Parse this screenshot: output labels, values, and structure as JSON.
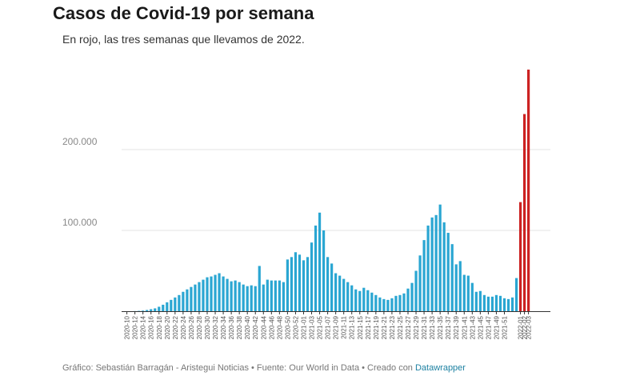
{
  "chart_data": {
    "type": "bar",
    "title": "Casos de Covid-19 por semana",
    "subtitle": "En rojo, las tres semanas que llevamos de 2022.",
    "ylim": [
      0,
      300000
    ],
    "yticks": [
      100000,
      200000
    ],
    "ytick_labels": [
      "100.000",
      "200.000"
    ],
    "grid": true,
    "colors": {
      "default": "#2aa6d2",
      "highlight": "#cc2222"
    },
    "highlight_last": 3,
    "values": [
      0,
      50,
      150,
      400,
      700,
      1500,
      2500,
      3500,
      5500,
      8000,
      11000,
      14000,
      17000,
      20000,
      24000,
      27000,
      30000,
      33000,
      36000,
      39000,
      42000,
      43000,
      45000,
      47000,
      43000,
      40000,
      37000,
      38000,
      36000,
      33000,
      31000,
      32000,
      31000,
      56000,
      33000,
      39000,
      38000,
      38000,
      38000,
      36000,
      64000,
      67000,
      73000,
      70000,
      63000,
      67000,
      85000,
      106000,
      122000,
      100000,
      67000,
      59000,
      47000,
      44000,
      40000,
      36000,
      32000,
      27000,
      25000,
      29000,
      26000,
      23000,
      20000,
      17000,
      15000,
      14000,
      16000,
      19000,
      20000,
      22000,
      28000,
      35000,
      50000,
      69000,
      88000,
      106000,
      116000,
      119000,
      132000,
      110000,
      97000,
      83000,
      58000,
      62000,
      45000,
      44000,
      35000,
      24000,
      25000,
      20000,
      18000,
      18000,
      20000,
      19000,
      16000,
      15000,
      17000,
      41000,
      135000,
      244000,
      299000
    ],
    "xtick_labels": [
      "2020-10",
      "2020-12",
      "2020-14",
      "2020-16",
      "2020-18",
      "2020-20",
      "2020-22",
      "2020-24",
      "2020-26",
      "2020-28",
      "2020-30",
      "2020-32",
      "2020-34",
      "2020-36",
      "2020-38",
      "2020-40",
      "2020-42",
      "2020-44",
      "2020-46",
      "2020-48",
      "2020-50",
      "2020-52",
      "2021-01",
      "2021-03",
      "2021-05",
      "2021-07",
      "2021-09",
      "2021-11",
      "2021-13",
      "2021-15",
      "2021-17",
      "2021-19",
      "2021-21",
      "2021-23",
      "2021-25",
      "2021-27",
      "2021-29",
      "2021-31",
      "2021-33",
      "2021-35",
      "2021-37",
      "2021-39",
      "2021-41",
      "2021-43",
      "2021-45",
      "2021-47",
      "2021-49",
      "2021-51",
      "2022-01",
      "2022-02",
      "2022-03"
    ],
    "footer": {
      "text": "Gráfico: Sebastián Barragán - Aristegui Noticias • Fuente: Our World in Data • Creado con ",
      "link": "Datawrapper"
    }
  }
}
